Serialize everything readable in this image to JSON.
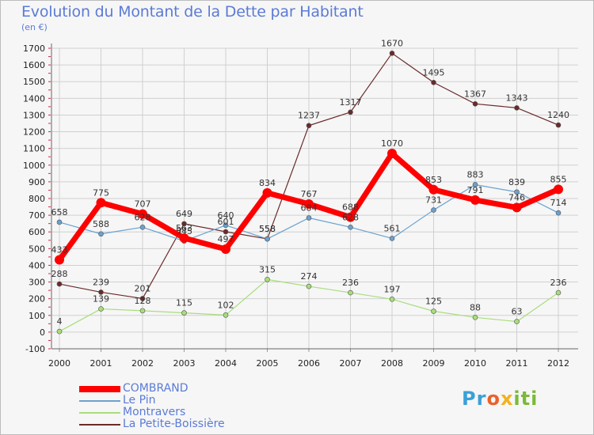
{
  "header": {
    "title": "Evolution du Montant de la Dette par Habitant",
    "unit": "(en €)"
  },
  "logo": {
    "text": "Proxiti",
    "parts": [
      "Pr",
      "o",
      "x",
      "iti"
    ]
  },
  "chart_data": {
    "type": "line",
    "title": "Evolution du Montant de la Dette par Habitant",
    "ylabel": "(en €)",
    "xlabel": "",
    "ylim": [
      -100,
      1700
    ],
    "yticks": [
      -100,
      0,
      100,
      200,
      300,
      400,
      500,
      600,
      700,
      800,
      900,
      1000,
      1100,
      1200,
      1300,
      1400,
      1500,
      1600,
      1700
    ],
    "grid": true,
    "legend": "bottom-left",
    "x": [
      "2000",
      "2001",
      "2002",
      "2003",
      "2004",
      "2005",
      "2006",
      "2007",
      "2008",
      "2009",
      "2010",
      "2011",
      "2012"
    ],
    "series": [
      {
        "name": "La Petite-Boissière",
        "color": "#6b2a2a",
        "width": 1.2,
        "values": [
          288,
          239,
          201,
          649,
          601,
          558,
          1237,
          1317,
          1670,
          1495,
          1367,
          1343,
          1240
        ],
        "labels": [
          "288",
          "239",
          "201",
          "649",
          "601",
          "558",
          "1237",
          "1317",
          "1670",
          "1495",
          "1367",
          "1343",
          "1240"
        ]
      },
      {
        "name": "Le Pin",
        "color": "#6aa1cf",
        "width": 1.2,
        "values": [
          658,
          588,
          628,
          545,
          640,
          558,
          684,
          628,
          561,
          731,
          883,
          839,
          714
        ],
        "labels": [
          "658",
          "588",
          "628",
          "545",
          "640",
          "558",
          "684",
          "628",
          "561",
          "731",
          "883",
          "839",
          "714"
        ]
      },
      {
        "name": "Montravers",
        "color": "#a8dd7c",
        "width": 1.2,
        "values": [
          4,
          139,
          128,
          115,
          102,
          315,
          274,
          236,
          197,
          125,
          88,
          63,
          236
        ],
        "labels": [
          "4",
          "139",
          "128",
          "115",
          "102",
          "315",
          "274",
          "236",
          "197",
          "125",
          "88",
          "63",
          "236"
        ]
      },
      {
        "name": "COMBRAND",
        "color": "#ff0000",
        "width": 7,
        "values": [
          433,
          775,
          707,
          563,
          497,
          834,
          767,
          688,
          1070,
          853,
          791,
          746,
          855
        ],
        "labels": [
          "433",
          "775",
          "707",
          "563",
          "497",
          "834",
          "767",
          "688",
          "1070",
          "853",
          "791",
          "746",
          "855"
        ]
      }
    ],
    "legend_order": [
      "COMBRAND",
      "Le Pin",
      "Montravers",
      "La Petite-Boissière"
    ]
  }
}
